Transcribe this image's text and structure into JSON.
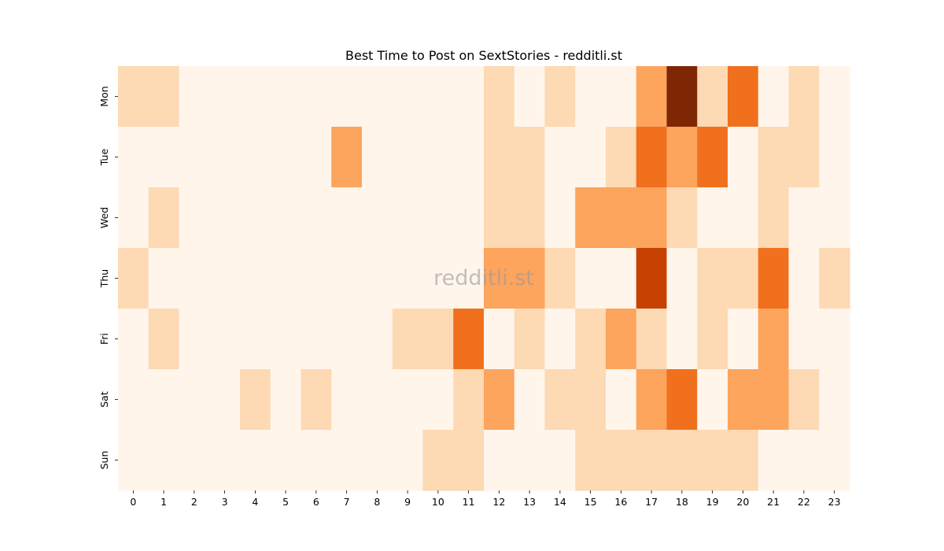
{
  "chart_data": {
    "type": "heatmap",
    "title": "Best Time to Post on SextStories - redditli.st",
    "watermark": "redditli.st",
    "xlabel": "",
    "ylabel": "",
    "x_categories": [
      "0",
      "1",
      "2",
      "3",
      "4",
      "5",
      "6",
      "7",
      "8",
      "9",
      "10",
      "11",
      "12",
      "13",
      "14",
      "15",
      "16",
      "17",
      "18",
      "19",
      "20",
      "21",
      "22",
      "23"
    ],
    "y_categories": [
      "Mon",
      "Tue",
      "Wed",
      "Thu",
      "Fri",
      "Sat",
      "Sun"
    ],
    "values": [
      [
        1,
        1,
        0,
        0,
        0,
        0,
        0,
        0,
        0,
        0,
        0,
        0,
        1,
        0,
        1,
        0,
        0,
        2,
        5,
        1,
        3,
        0,
        1,
        0
      ],
      [
        0,
        0,
        0,
        0,
        0,
        0,
        0,
        2,
        0,
        0,
        0,
        0,
        1,
        1,
        0,
        0,
        1,
        3,
        2,
        3,
        0,
        1,
        1,
        0
      ],
      [
        0,
        1,
        0,
        0,
        0,
        0,
        0,
        0,
        0,
        0,
        0,
        0,
        1,
        1,
        0,
        2,
        2,
        2,
        1,
        0,
        0,
        1,
        0,
        0
      ],
      [
        1,
        0,
        0,
        0,
        0,
        0,
        0,
        0,
        0,
        0,
        0,
        0,
        2,
        2,
        1,
        0,
        0,
        4,
        0,
        1,
        1,
        3,
        0,
        1
      ],
      [
        0,
        1,
        0,
        0,
        0,
        0,
        0,
        0,
        0,
        1,
        1,
        3,
        0,
        1,
        0,
        1,
        2,
        1,
        0,
        1,
        0,
        2,
        0,
        0
      ],
      [
        0,
        0,
        0,
        0,
        1,
        0,
        1,
        0,
        0,
        0,
        0,
        1,
        2,
        0,
        1,
        1,
        0,
        2,
        3,
        0,
        2,
        2,
        1,
        0
      ],
      [
        0,
        0,
        0,
        0,
        0,
        0,
        0,
        0,
        0,
        0,
        1,
        1,
        0,
        0,
        0,
        1,
        1,
        1,
        1,
        1,
        1,
        0,
        0,
        0
      ]
    ],
    "colormap": "Oranges",
    "level_colors": [
      "#fff5eb",
      "#fdd9b4",
      "#fda45d",
      "#f0701d",
      "#c64102",
      "#7f2704"
    ],
    "grid": false,
    "legend": "none"
  }
}
